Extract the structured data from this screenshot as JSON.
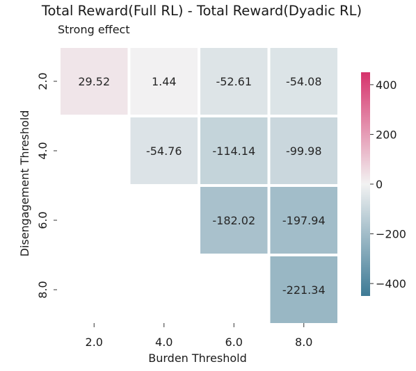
{
  "chart_data": {
    "type": "heatmap",
    "title": "Total Reward(Full RL) - Total Reward(Dyadic RL)",
    "subtitle": "Strong effect",
    "xlabel": "Burden Threshold",
    "ylabel": "Disengagement Threshold",
    "x": [
      "2.0",
      "4.0",
      "6.0",
      "8.0"
    ],
    "y": [
      "2.0",
      "4.0",
      "6.0",
      "8.0"
    ],
    "values": [
      [
        29.52,
        1.44,
        -52.61,
        -54.08
      ],
      [
        null,
        -54.76,
        -114.14,
        -99.98
      ],
      [
        null,
        null,
        -182.02,
        -197.94
      ],
      [
        null,
        null,
        null,
        -221.34
      ]
    ],
    "cell_labels": [
      [
        "29.52",
        "1.44",
        "-52.61",
        "-54.08"
      ],
      [
        null,
        "-54.76",
        "-114.14",
        "-99.98"
      ],
      [
        null,
        null,
        "-182.02",
        "-197.94"
      ],
      [
        null,
        null,
        null,
        "-221.34"
      ]
    ],
    "colorbar": {
      "range": [
        -450,
        450
      ],
      "ticks": [
        400,
        200,
        0,
        -200,
        -400
      ],
      "tick_labels": [
        "400",
        "200",
        "0",
        "−200",
        "−400"
      ],
      "colors": {
        "min": "#3d7a95",
        "mid": "#f2f2f2",
        "max": "#d6336c"
      }
    },
    "grid": false,
    "cell_separator_color": "#ffffff"
  }
}
